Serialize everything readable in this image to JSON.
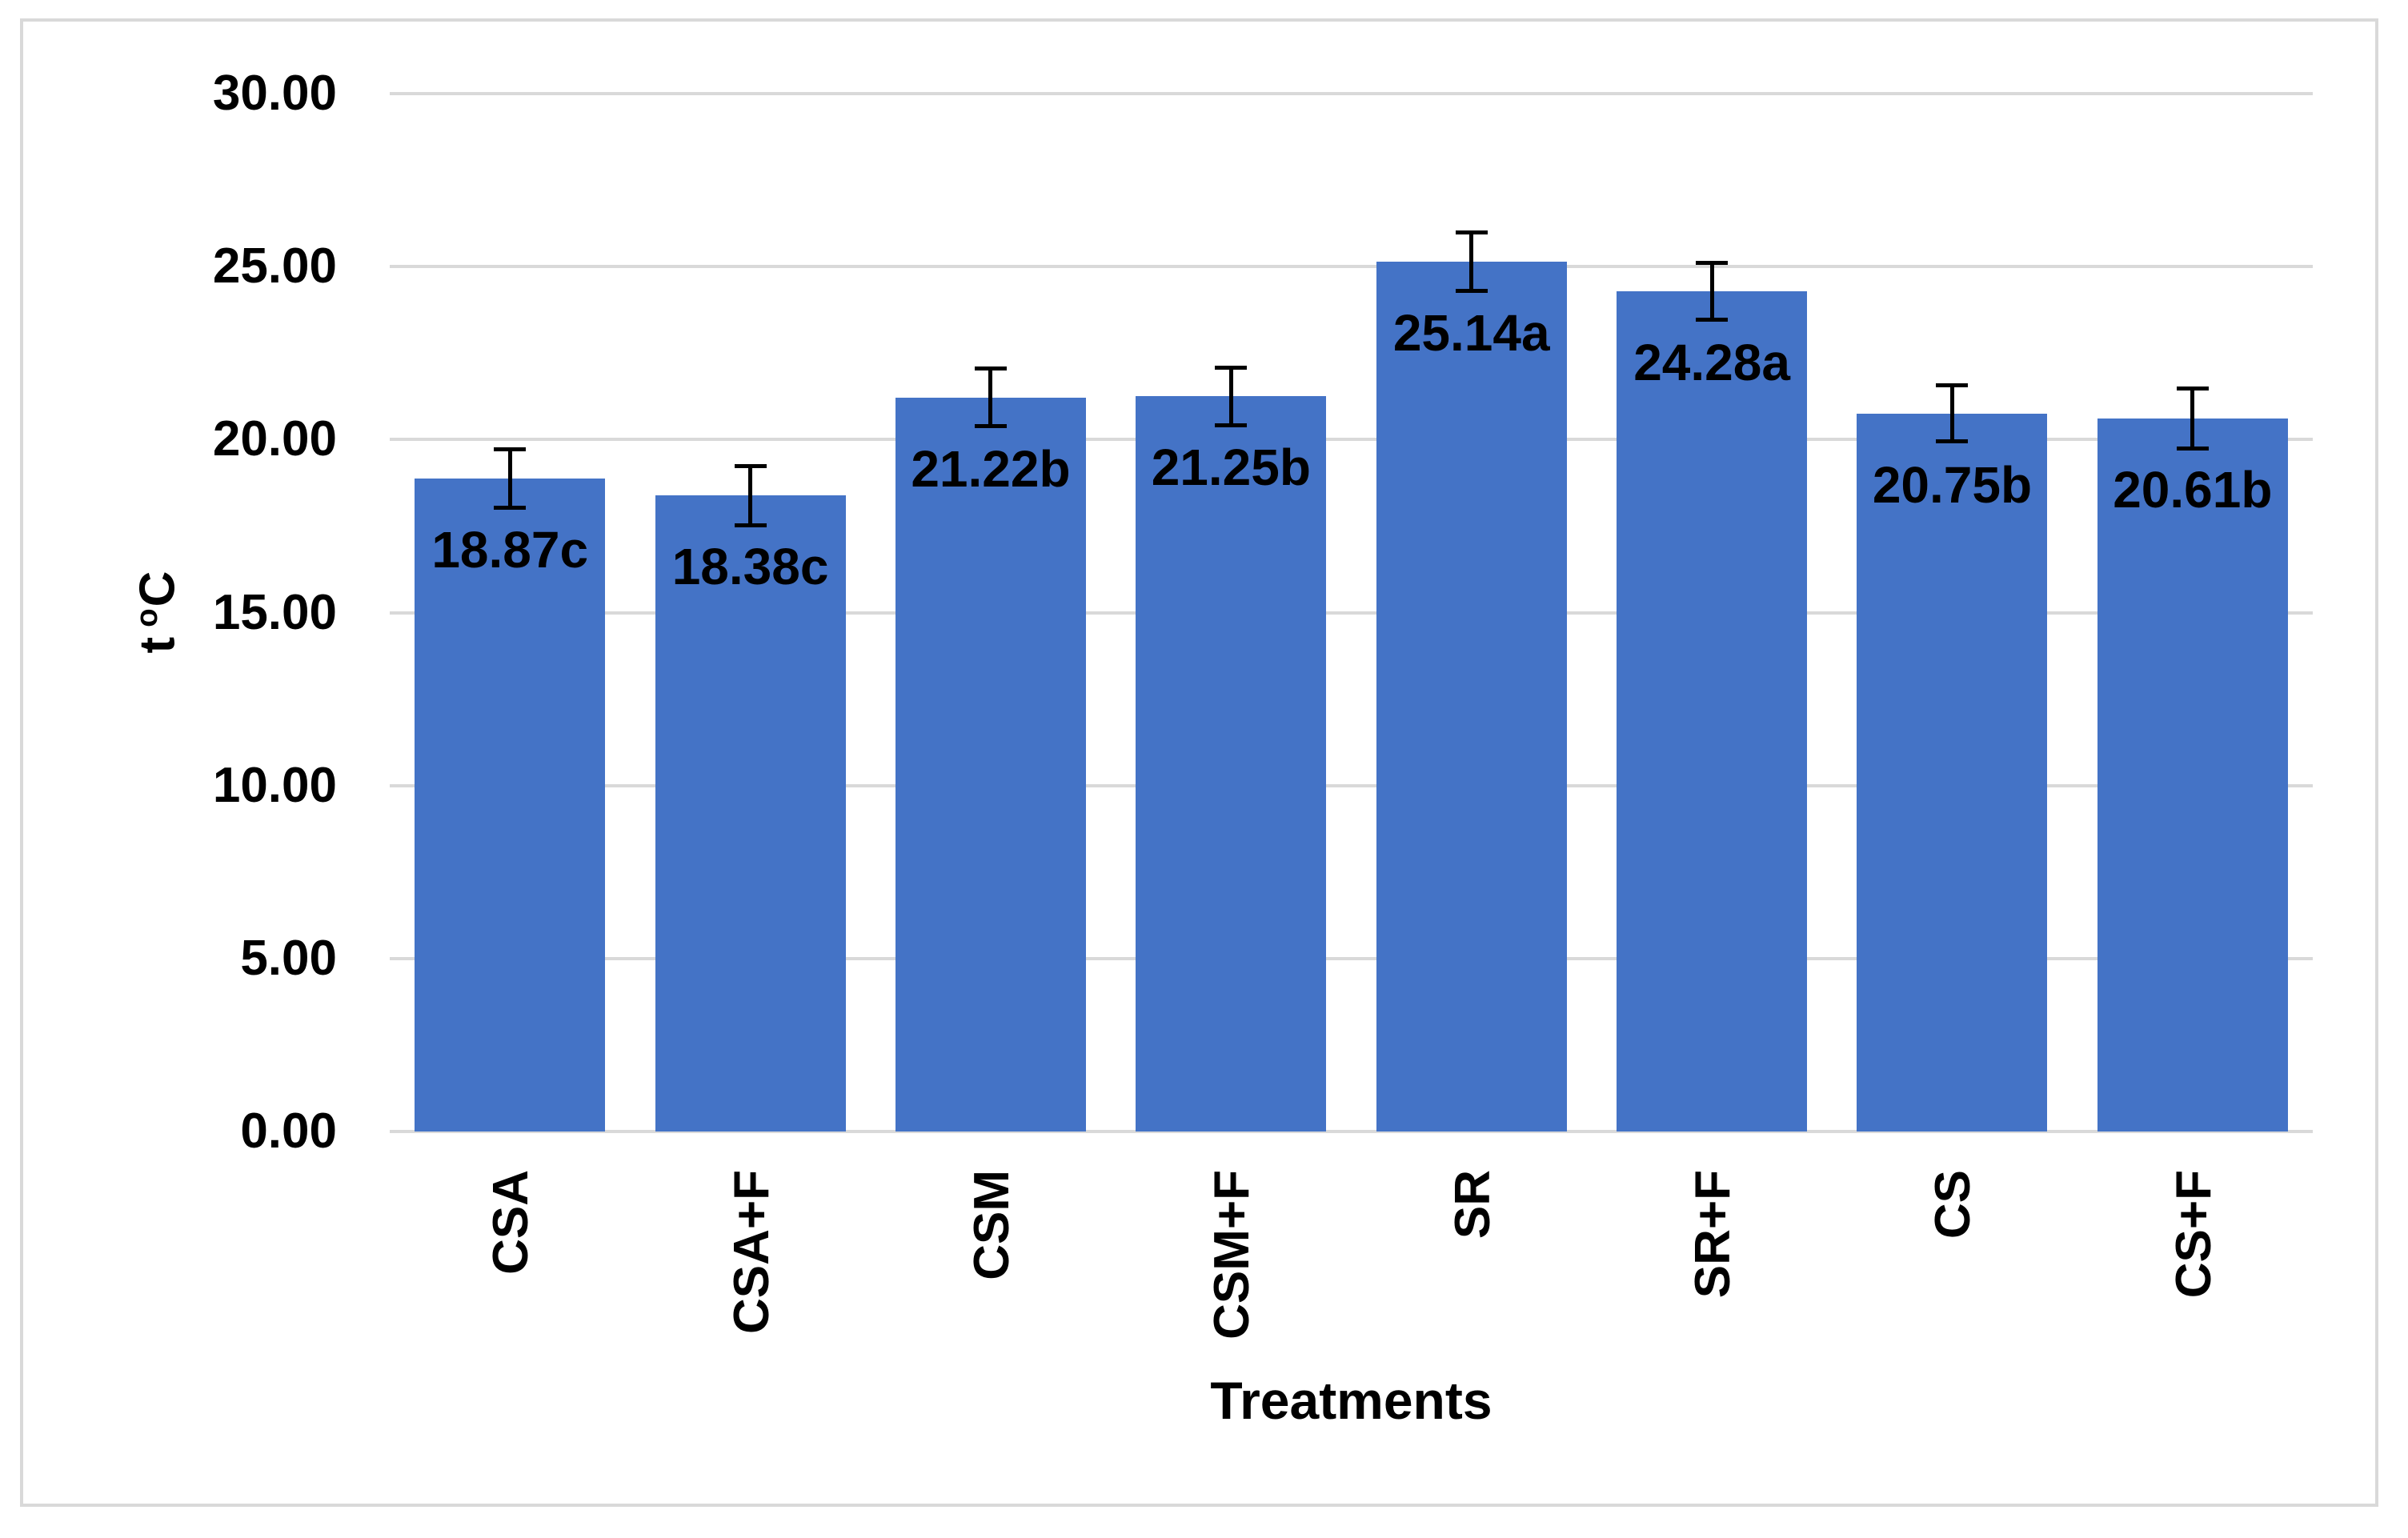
{
  "chart_data": {
    "type": "bar",
    "xlabel": "Treatments",
    "ylabel_parts": {
      "prefix": "t",
      "superscript": "o",
      "suffix": "C"
    },
    "ylim": [
      0,
      30
    ],
    "grid": true,
    "legend": "none",
    "bar_color": "#4473c6",
    "error_bar_color": "#000000",
    "gridline_color": "#d9d9d9",
    "frame_border_color": "#d9d9d9",
    "yticks": [
      {
        "value": 0,
        "label": "0.00"
      },
      {
        "value": 5,
        "label": "5.00"
      },
      {
        "value": 10,
        "label": "10.00"
      },
      {
        "value": 15,
        "label": "15.00"
      },
      {
        "value": 20,
        "label": "20.00"
      },
      {
        "value": 25,
        "label": "25.00"
      },
      {
        "value": 30,
        "label": "30.00"
      }
    ],
    "categories": [
      "CSA",
      "CSA+F",
      "CSM",
      "CSM+F",
      "SR",
      "SR+F",
      "CS",
      "CS+F"
    ],
    "bars": [
      {
        "category": "CSA",
        "value": 18.87,
        "label": "18.87c",
        "error": 0.85
      },
      {
        "category": "CSA+F",
        "value": 18.38,
        "label": "18.38c",
        "error": 0.87
      },
      {
        "category": "CSM",
        "value": 21.22,
        "label": "21.22b",
        "error": 0.84
      },
      {
        "category": "CSM+F",
        "value": 21.25,
        "label": "21.25b",
        "error": 0.84
      },
      {
        "category": "SR",
        "value": 25.14,
        "label": "25.14a",
        "error": 0.85
      },
      {
        "category": "SR+F",
        "value": 24.28,
        "label": "24.28a",
        "error": 0.83
      },
      {
        "category": "CS",
        "value": 20.75,
        "label": "20.75b",
        "error": 0.82
      },
      {
        "category": "CS+F",
        "value": 20.61,
        "label": "20.61b",
        "error": 0.87
      }
    ]
  }
}
